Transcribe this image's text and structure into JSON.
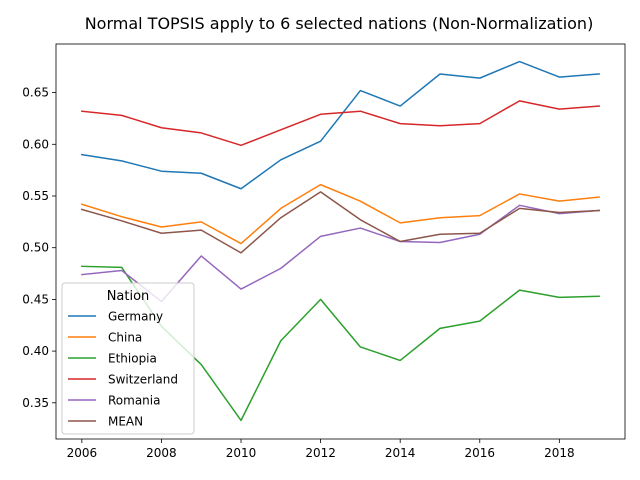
{
  "chart_data": {
    "type": "line",
    "title": "Normal TOPSIS apply to 6 selected nations (Non-Normalization)",
    "xlabel": "",
    "ylabel": "",
    "x": [
      2006,
      2007,
      2008,
      2009,
      2010,
      2011,
      2012,
      2013,
      2014,
      2015,
      2016,
      2017,
      2018,
      2019
    ],
    "xlim": [
      2005.35,
      2019.65
    ],
    "ylim": [
      0.315,
      0.697
    ],
    "xticks": [
      2006,
      2008,
      2010,
      2012,
      2014,
      2016,
      2018
    ],
    "yticks": [
      0.35,
      0.4,
      0.45,
      0.5,
      0.55,
      0.6,
      0.65
    ],
    "ytick_labels": [
      "0.35",
      "0.40",
      "0.45",
      "0.50",
      "0.55",
      "0.60",
      "0.65"
    ],
    "grid": false,
    "legend": {
      "title": "Nation",
      "placement": "lower-left"
    },
    "series": [
      {
        "name": "Germany",
        "color": "#1f77b4",
        "values": [
          0.59,
          0.584,
          0.574,
          0.572,
          0.557,
          0.585,
          0.603,
          0.652,
          0.637,
          0.668,
          0.664,
          0.68,
          0.665,
          0.668
        ]
      },
      {
        "name": "China",
        "color": "#ff7f0e",
        "values": [
          0.542,
          0.53,
          0.52,
          0.525,
          0.504,
          0.538,
          0.561,
          0.545,
          0.524,
          0.529,
          0.531,
          0.552,
          0.545,
          0.549
        ]
      },
      {
        "name": "Ethiopia",
        "color": "#2ca02c",
        "values": [
          0.482,
          0.481,
          0.424,
          0.387,
          0.333,
          0.41,
          0.45,
          0.404,
          0.391,
          0.422,
          0.429,
          0.459,
          0.452,
          0.453
        ]
      },
      {
        "name": "Switzerland",
        "color": "#d62728",
        "values": [
          0.632,
          0.628,
          0.616,
          0.611,
          0.599,
          0.614,
          0.629,
          0.632,
          0.62,
          0.618,
          0.62,
          0.642,
          0.634,
          0.637
        ]
      },
      {
        "name": "Romania",
        "color": "#9467bd",
        "values": [
          0.474,
          0.478,
          0.448,
          0.492,
          0.46,
          0.48,
          0.511,
          0.519,
          0.506,
          0.505,
          0.513,
          0.541,
          0.533,
          0.536
        ]
      },
      {
        "name": "MEAN",
        "color": "#8c564b",
        "values": [
          0.537,
          0.526,
          0.514,
          0.517,
          0.495,
          0.529,
          0.554,
          0.527,
          0.506,
          0.513,
          0.514,
          0.538,
          0.534,
          0.536
        ]
      }
    ]
  }
}
